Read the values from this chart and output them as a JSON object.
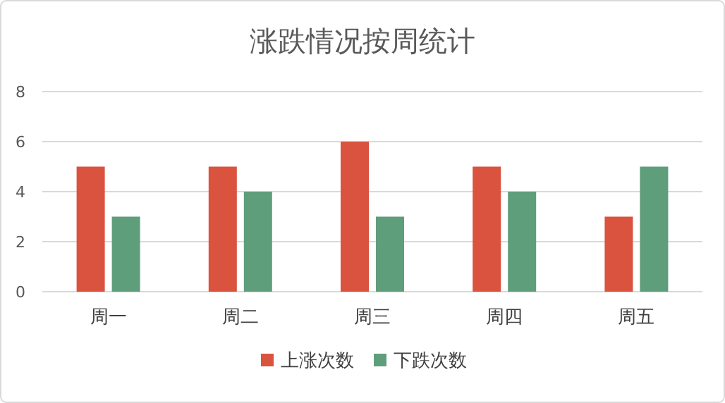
{
  "chart_data": {
    "type": "bar",
    "title": "涨跌情况按周统计",
    "categories": [
      "周一",
      "周二",
      "周三",
      "周四",
      "周五"
    ],
    "series": [
      {
        "name": "上涨次数",
        "color": "#d9533f",
        "values": [
          5,
          5,
          6,
          5,
          3
        ]
      },
      {
        "name": "下跌次数",
        "color": "#5f9e7a",
        "values": [
          3,
          4,
          3,
          4,
          5
        ]
      }
    ],
    "ylim": [
      0,
      8
    ],
    "yticks": [
      0,
      2,
      4,
      6,
      8
    ],
    "grid": "y",
    "legend": "bottom"
  }
}
